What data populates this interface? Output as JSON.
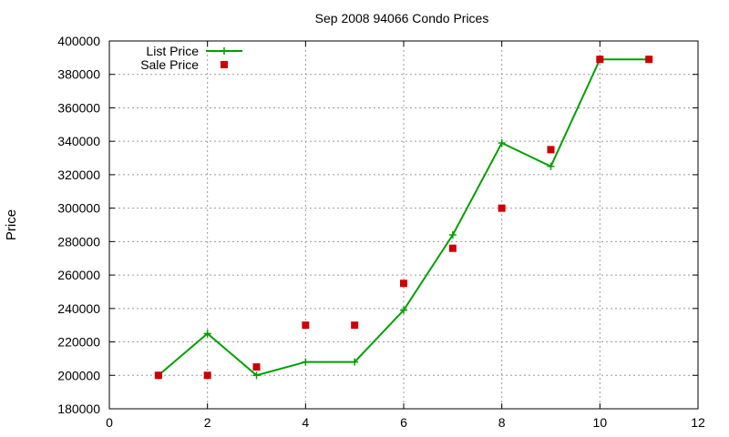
{
  "chart_data": {
    "type": "line",
    "title": "Sep 2008 94066 Condo Prices",
    "xlabel": "",
    "ylabel": "Price",
    "xlim": [
      0,
      12
    ],
    "ylim": [
      180000,
      400000
    ],
    "x_ticks": [
      0,
      2,
      4,
      6,
      8,
      10,
      12
    ],
    "y_ticks": [
      180000,
      200000,
      220000,
      240000,
      260000,
      280000,
      300000,
      320000,
      340000,
      360000,
      380000,
      400000
    ],
    "grid": true,
    "legend_position": "top-left",
    "series": [
      {
        "name": "List Price",
        "style": "line-with-plus-markers",
        "color": "#00a000",
        "x": [
          1,
          2,
          3,
          4,
          5,
          6,
          7,
          8,
          9,
          10,
          11
        ],
        "y": [
          200000,
          225000,
          200000,
          208000,
          208000,
          239000,
          284000,
          339000,
          325000,
          389000,
          389000
        ]
      },
      {
        "name": "Sale Price",
        "style": "square-markers",
        "color": "#cc0000",
        "x": [
          1,
          2,
          3,
          4,
          5,
          6,
          7,
          8,
          9,
          10,
          11
        ],
        "y": [
          200000,
          200000,
          205000,
          230000,
          230000,
          255000,
          276000,
          300000,
          335000,
          389000,
          389000
        ]
      }
    ]
  }
}
